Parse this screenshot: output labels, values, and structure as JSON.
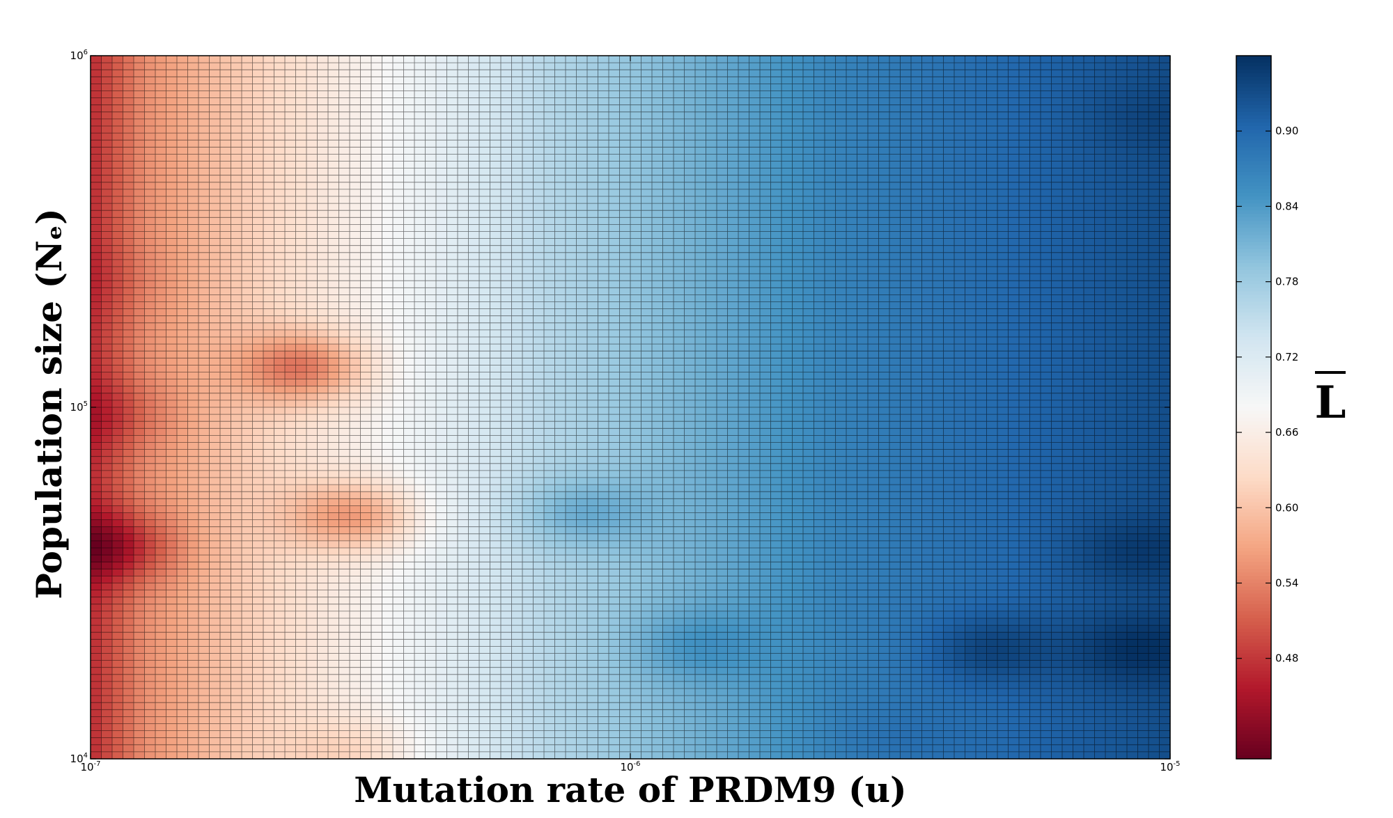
{
  "chart_data": {
    "type": "heatmap",
    "xlabel": "Mutation rate of PRDM9 (u)",
    "ylabel": "Population size (Nₑ)",
    "x_scale": "log",
    "y_scale": "log",
    "xlim": [
      1e-07,
      1e-05
    ],
    "ylim": [
      10000,
      1000000
    ],
    "x_ticks": [
      {
        "value": 1e-07,
        "base": "10",
        "exp": "-7"
      },
      {
        "value": 1e-06,
        "base": "10",
        "exp": "-6"
      },
      {
        "value": 1e-05,
        "base": "10",
        "exp": "-5"
      }
    ],
    "y_ticks": [
      {
        "value": 10000,
        "base": "10",
        "exp": "4"
      },
      {
        "value": 100000,
        "base": "10",
        "exp": "5"
      },
      {
        "value": 1000000,
        "base": "10",
        "exp": "6"
      }
    ],
    "colorbar": {
      "label": "L",
      "label_overline": true,
      "colormap": "RdBu",
      "range": [
        0.4,
        0.96
      ],
      "ticks": [
        0.48,
        0.54,
        0.6,
        0.66,
        0.72,
        0.78,
        0.84,
        0.9
      ],
      "tick_labels": [
        "0.48",
        "0.54",
        "0.60",
        "0.66",
        "0.72",
        "0.78",
        "0.84",
        "0.90"
      ]
    },
    "grid_resolution": {
      "columns": 100,
      "rows": 100
    },
    "grid": true,
    "trend": "Mean L rises from about 0.45–0.60 at u=1e-7 to about 0.92–0.95 at u=1e-5, weakly dependent on Ne",
    "column_profile": {
      "log10_u": [
        -7.0,
        -6.9,
        -6.75,
        -6.6,
        -6.45,
        -6.3,
        -6.15,
        -6.0,
        -5.8,
        -5.6,
        -5.4,
        -5.2,
        -5.0
      ],
      "L": [
        0.47,
        0.55,
        0.6,
        0.64,
        0.68,
        0.72,
        0.76,
        0.79,
        0.83,
        0.87,
        0.89,
        0.91,
        0.93
      ]
    },
    "features": [
      {
        "u": 1.1e-07,
        "Ne": 40000,
        "L": 0.42
      },
      {
        "u": 1.1e-07,
        "Ne": 95000,
        "L": 0.47
      },
      {
        "u": 1.1e-07,
        "Ne": 230000,
        "L": 0.49
      },
      {
        "u": 2.5e-07,
        "Ne": 130000,
        "L": 0.53
      },
      {
        "u": 3.1e-07,
        "Ne": 49000,
        "L": 0.56
      },
      {
        "u": 3.1e-07,
        "Ne": 10500,
        "L": 0.62
      },
      {
        "u": 8e-07,
        "Ne": 50000,
        "L": 0.82
      },
      {
        "u": 1.3e-06,
        "Ne": 21000,
        "L": 0.85
      },
      {
        "u": 3e-06,
        "Ne": 11500,
        "L": 0.89
      },
      {
        "u": 4.6e-06,
        "Ne": 20500,
        "L": 0.94
      },
      {
        "u": 8.5e-06,
        "Ne": 20500,
        "L": 0.96
      },
      {
        "u": 8.5e-06,
        "Ne": 39000,
        "L": 0.95
      },
      {
        "u": 9e-06,
        "Ne": 660000,
        "L": 0.94
      }
    ]
  }
}
